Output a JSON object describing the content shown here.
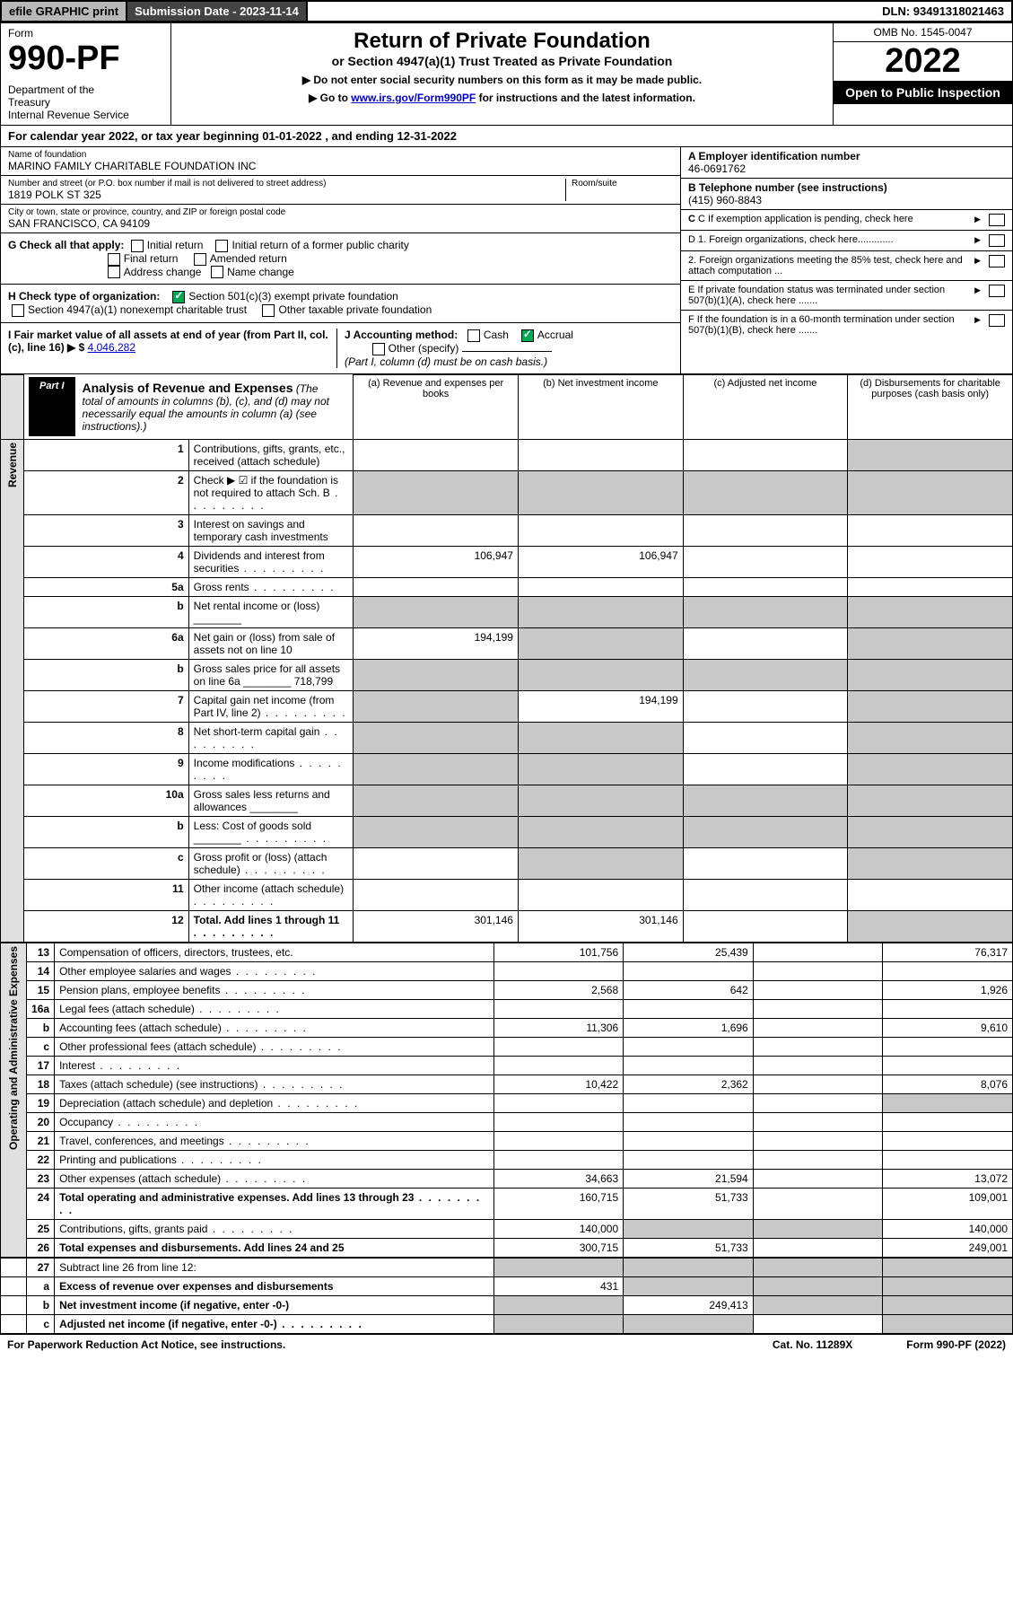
{
  "topbar": {
    "efile": "efile GRAPHIC print",
    "subdate_label": "Submission Date - 2023-11-14",
    "dln": "DLN: 93491318021463"
  },
  "header": {
    "form_label": "Form",
    "form_num": "990-PF",
    "dept": "Department of the Treasury\nInternal Revenue Service",
    "title": "Return of Private Foundation",
    "subtitle": "or Section 4947(a)(1) Trust Treated as Private Foundation",
    "instr1": "▶ Do not enter social security numbers on this form as it may be made public.",
    "instr2_pre": "▶ Go to ",
    "instr2_link": "www.irs.gov/Form990PF",
    "instr2_post": " for instructions and the latest information.",
    "omb": "OMB No. 1545-0047",
    "year": "2022",
    "open_pub": "Open to Public Inspection"
  },
  "cal_year": "For calendar year 2022, or tax year beginning 01-01-2022                          , and ending 12-31-2022",
  "foundation": {
    "name_lbl": "Name of foundation",
    "name": "MARINO FAMILY CHARITABLE FOUNDATION INC",
    "addr_lbl": "Number and street (or P.O. box number if mail is not delivered to street address)",
    "addr": "1819 POLK ST 325",
    "room_lbl": "Room/suite",
    "city_lbl": "City or town, state or province, country, and ZIP or foreign postal code",
    "city": "SAN FRANCISCO, CA  94109",
    "ein_lbl": "A Employer identification number",
    "ein": "46-0691762",
    "tel_lbl": "B Telephone number (see instructions)",
    "tel": "(415) 960-8843",
    "c_lbl": "C If exemption application is pending, check here",
    "d1": "D 1. Foreign organizations, check here.............",
    "d2": "2. Foreign organizations meeting the 85% test, check here and attach computation ...",
    "e": "E  If private foundation status was terminated under section 507(b)(1)(A), check here .......",
    "f": "F  If the foundation is in a 60-month termination under section 507(b)(1)(B), check here .......",
    "g_lbl": "G Check all that apply:",
    "g_opts": [
      "Initial return",
      "Initial return of a former public charity",
      "Final return",
      "Amended return",
      "Address change",
      "Name change"
    ],
    "h_lbl": "H Check type of organization:",
    "h1": "Section 501(c)(3) exempt private foundation",
    "h2": "Section 4947(a)(1) nonexempt charitable trust",
    "h3": "Other taxable private foundation",
    "i_lbl": "I Fair market value of all assets at end of year (from Part II, col. (c), line 16) ▶ $",
    "i_val": "4,046,282",
    "j_lbl": "J Accounting method:",
    "j_cash": "Cash",
    "j_accrual": "Accrual",
    "j_other": "Other (specify)",
    "j_note": "(Part I, column (d) must be on cash basis.)"
  },
  "part1": {
    "tag": "Part I",
    "title": "Analysis of Revenue and Expenses",
    "title_note": "(The total of amounts in columns (b), (c), and (d) may not necessarily equal the amounts in column (a) (see instructions).)",
    "col_a": "(a)  Revenue and expenses per books",
    "col_b": "(b)  Net investment income",
    "col_c": "(c)  Adjusted net income",
    "col_d": "(d)  Disbursements for charitable purposes (cash basis only)"
  },
  "side": {
    "rev": "Revenue",
    "exp": "Operating and Administrative Expenses"
  },
  "rows": [
    {
      "n": "1",
      "d": "Contributions, gifts, grants, etc., received (attach schedule)",
      "a": "",
      "b": "",
      "c": "",
      "dd": "",
      "grey": [
        "dd"
      ]
    },
    {
      "n": "2",
      "d": "Check ▶ ☑ if the foundation is not required to attach Sch. B",
      "a": "",
      "b": "",
      "c": "",
      "dd": "",
      "grey": [
        "a",
        "b",
        "c",
        "dd"
      ],
      "dots": true
    },
    {
      "n": "3",
      "d": "Interest on savings and temporary cash investments",
      "a": "",
      "b": "",
      "c": "",
      "dd": ""
    },
    {
      "n": "4",
      "d": "Dividends and interest from securities",
      "a": "106,947",
      "b": "106,947",
      "c": "",
      "dd": "",
      "dots": true
    },
    {
      "n": "5a",
      "d": "Gross rents",
      "a": "",
      "b": "",
      "c": "",
      "dd": "",
      "dots": true
    },
    {
      "n": "b",
      "d": "Net rental income or (loss)",
      "a": "",
      "b": "",
      "c": "",
      "dd": "",
      "grey": [
        "a",
        "b",
        "c",
        "dd"
      ],
      "inline": true
    },
    {
      "n": "6a",
      "d": "Net gain or (loss) from sale of assets not on line 10",
      "a": "194,199",
      "b": "",
      "c": "",
      "dd": "",
      "grey": [
        "b",
        "dd"
      ]
    },
    {
      "n": "b",
      "d": "Gross sales price for all assets on line 6a",
      "a": "",
      "b": "",
      "c": "",
      "dd": "",
      "grey": [
        "a",
        "b",
        "c",
        "dd"
      ],
      "inline": true,
      "iv": "718,799"
    },
    {
      "n": "7",
      "d": "Capital gain net income (from Part IV, line 2)",
      "a": "",
      "b": "194,199",
      "c": "",
      "dd": "",
      "grey": [
        "a",
        "dd"
      ],
      "dots": true
    },
    {
      "n": "8",
      "d": "Net short-term capital gain",
      "a": "",
      "b": "",
      "c": "",
      "dd": "",
      "grey": [
        "a",
        "b",
        "dd"
      ],
      "dots": true
    },
    {
      "n": "9",
      "d": "Income modifications",
      "a": "",
      "b": "",
      "c": "",
      "dd": "",
      "grey": [
        "a",
        "b",
        "dd"
      ],
      "dots": true
    },
    {
      "n": "10a",
      "d": "Gross sales less returns and allowances",
      "a": "",
      "b": "",
      "c": "",
      "dd": "",
      "grey": [
        "a",
        "b",
        "c",
        "dd"
      ],
      "inline": true
    },
    {
      "n": "b",
      "d": "Less: Cost of goods sold",
      "a": "",
      "b": "",
      "c": "",
      "dd": "",
      "grey": [
        "a",
        "b",
        "c",
        "dd"
      ],
      "inline": true,
      "dots": true
    },
    {
      "n": "c",
      "d": "Gross profit or (loss) (attach schedule)",
      "a": "",
      "b": "",
      "c": "",
      "dd": "",
      "grey": [
        "b",
        "dd"
      ],
      "dots": true
    },
    {
      "n": "11",
      "d": "Other income (attach schedule)",
      "a": "",
      "b": "",
      "c": "",
      "dd": "",
      "dots": true
    },
    {
      "n": "12",
      "d": "Total. Add lines 1 through 11",
      "a": "301,146",
      "b": "301,146",
      "c": "",
      "dd": "",
      "grey": [
        "dd"
      ],
      "dots": true,
      "bold": true
    }
  ],
  "exp_rows": [
    {
      "n": "13",
      "d": "Compensation of officers, directors, trustees, etc.",
      "a": "101,756",
      "b": "25,439",
      "c": "",
      "dd": "76,317"
    },
    {
      "n": "14",
      "d": "Other employee salaries and wages",
      "a": "",
      "b": "",
      "c": "",
      "dd": "",
      "dots": true
    },
    {
      "n": "15",
      "d": "Pension plans, employee benefits",
      "a": "2,568",
      "b": "642",
      "c": "",
      "dd": "1,926",
      "dots": true
    },
    {
      "n": "16a",
      "d": "Legal fees (attach schedule)",
      "a": "",
      "b": "",
      "c": "",
      "dd": "",
      "dots": true
    },
    {
      "n": "b",
      "d": "Accounting fees (attach schedule)",
      "a": "11,306",
      "b": "1,696",
      "c": "",
      "dd": "9,610",
      "dots": true
    },
    {
      "n": "c",
      "d": "Other professional fees (attach schedule)",
      "a": "",
      "b": "",
      "c": "",
      "dd": "",
      "dots": true
    },
    {
      "n": "17",
      "d": "Interest",
      "a": "",
      "b": "",
      "c": "",
      "dd": "",
      "dots": true
    },
    {
      "n": "18",
      "d": "Taxes (attach schedule) (see instructions)",
      "a": "10,422",
      "b": "2,362",
      "c": "",
      "dd": "8,076",
      "dots": true
    },
    {
      "n": "19",
      "d": "Depreciation (attach schedule) and depletion",
      "a": "",
      "b": "",
      "c": "",
      "dd": "",
      "grey": [
        "dd"
      ],
      "dots": true
    },
    {
      "n": "20",
      "d": "Occupancy",
      "a": "",
      "b": "",
      "c": "",
      "dd": "",
      "dots": true
    },
    {
      "n": "21",
      "d": "Travel, conferences, and meetings",
      "a": "",
      "b": "",
      "c": "",
      "dd": "",
      "dots": true
    },
    {
      "n": "22",
      "d": "Printing and publications",
      "a": "",
      "b": "",
      "c": "",
      "dd": "",
      "dots": true
    },
    {
      "n": "23",
      "d": "Other expenses (attach schedule)",
      "a": "34,663",
      "b": "21,594",
      "c": "",
      "dd": "13,072",
      "dots": true
    },
    {
      "n": "24",
      "d": "Total operating and administrative expenses. Add lines 13 through 23",
      "a": "160,715",
      "b": "51,733",
      "c": "",
      "dd": "109,001",
      "bold": true,
      "dots": true
    },
    {
      "n": "25",
      "d": "Contributions, gifts, grants paid",
      "a": "140,000",
      "b": "",
      "c": "",
      "dd": "140,000",
      "grey": [
        "b",
        "c"
      ],
      "dots": true
    },
    {
      "n": "26",
      "d": "Total expenses and disbursements. Add lines 24 and 25",
      "a": "300,715",
      "b": "51,733",
      "c": "",
      "dd": "249,001",
      "bold": true
    }
  ],
  "net_rows": [
    {
      "n": "27",
      "d": "Subtract line 26 from line 12:",
      "a": "",
      "b": "",
      "c": "",
      "dd": "",
      "grey": [
        "a",
        "b",
        "c",
        "dd"
      ]
    },
    {
      "n": "a",
      "d": "Excess of revenue over expenses and disbursements",
      "a": "431",
      "b": "",
      "c": "",
      "dd": "",
      "grey": [
        "b",
        "c",
        "dd"
      ],
      "bold": true
    },
    {
      "n": "b",
      "d": "Net investment income (if negative, enter -0-)",
      "a": "",
      "b": "249,413",
      "c": "",
      "dd": "",
      "grey": [
        "a",
        "c",
        "dd"
      ],
      "bold": true
    },
    {
      "n": "c",
      "d": "Adjusted net income (if negative, enter -0-)",
      "a": "",
      "b": "",
      "c": "",
      "dd": "",
      "grey": [
        "a",
        "b",
        "dd"
      ],
      "bold": true,
      "dots": true
    }
  ],
  "footer": {
    "left": "For Paperwork Reduction Act Notice, see instructions.",
    "mid": "Cat. No. 11289X",
    "right": "Form 990-PF (2022)"
  }
}
